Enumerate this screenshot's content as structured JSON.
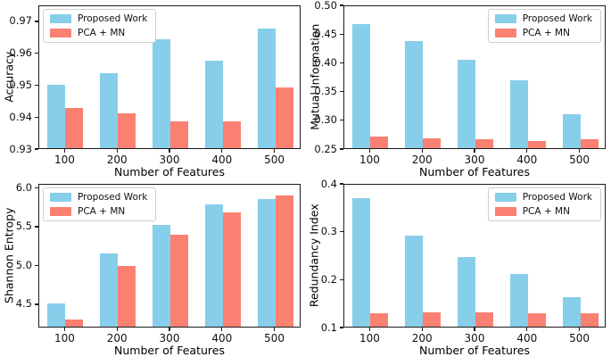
{
  "figure": {
    "background": "#ffffff",
    "spine_color": "#1c1c1c"
  },
  "colors": {
    "proposed_work": "#87ceeb",
    "pca_mn": "#fa8072"
  },
  "legend": {
    "items": [
      {
        "label": "Proposed Work",
        "color": "#87ceeb"
      },
      {
        "label": "PCA + MN",
        "color": "#fa8072"
      }
    ]
  },
  "chart_data": [
    {
      "type": "bar",
      "title": "",
      "ylabel": "Accuracy",
      "xlabel": "Number of Features",
      "categories": [
        "100",
        "200",
        "300",
        "400",
        "500"
      ],
      "ylim": [
        0.93,
        0.975
      ],
      "yticks": [
        0.93,
        0.94,
        0.95,
        0.96,
        0.97
      ],
      "ytick_labels": [
        "0.93",
        "0.94",
        "0.95",
        "0.96",
        "0.97"
      ],
      "grid": false,
      "legend_position": "upper-left",
      "series": [
        {
          "name": "Proposed Work",
          "color": "#87ceeb",
          "values": [
            0.9503,
            0.954,
            0.9647,
            0.9579,
            0.9683
          ]
        },
        {
          "name": "PCA + MN",
          "color": "#fa8072",
          "values": [
            0.9428,
            0.9412,
            0.9386,
            0.9386,
            0.9494
          ]
        }
      ]
    },
    {
      "type": "bar",
      "title": "",
      "ylabel": "Mutual Information",
      "xlabel": "Number of Features",
      "categories": [
        "100",
        "200",
        "300",
        "400",
        "500"
      ],
      "ylim": [
        0.25,
        0.5
      ],
      "yticks": [
        0.25,
        0.3,
        0.35,
        0.4,
        0.45,
        0.5
      ],
      "ytick_labels": [
        "0.25",
        "0.30",
        "0.35",
        "0.40",
        "0.45",
        "0.50"
      ],
      "grid": false,
      "legend_position": "upper-right",
      "series": [
        {
          "name": "Proposed Work",
          "color": "#87ceeb",
          "values": [
            0.47,
            0.44,
            0.406,
            0.37,
            0.31
          ]
        },
        {
          "name": "PCA + MN",
          "color": "#fa8072",
          "values": [
            0.27,
            0.268,
            0.266,
            0.263,
            0.266
          ]
        }
      ]
    },
    {
      "type": "bar",
      "title": "",
      "ylabel": "Shannon Entropy",
      "xlabel": "Number of Features",
      "categories": [
        "100",
        "200",
        "300",
        "400",
        "500"
      ],
      "ylim": [
        4.2,
        6.05
      ],
      "yticks": [
        4.5,
        5.0,
        5.5,
        6.0
      ],
      "ytick_labels": [
        "4.5",
        "5.0",
        "5.5",
        "6.0"
      ],
      "grid": false,
      "legend_position": "upper-left",
      "series": [
        {
          "name": "Proposed Work",
          "color": "#87ceeb",
          "values": [
            4.5,
            5.16,
            5.54,
            5.8,
            5.88
          ]
        },
        {
          "name": "PCA + MN",
          "color": "#fa8072",
          "values": [
            4.3,
            5.0,
            5.41,
            5.7,
            5.92
          ]
        }
      ]
    },
    {
      "type": "bar",
      "title": "",
      "ylabel": "Redundancy Index",
      "xlabel": "Number of Features",
      "categories": [
        "100",
        "200",
        "300",
        "400",
        "500"
      ],
      "ylim": [
        0.1,
        0.4
      ],
      "yticks": [
        0.1,
        0.2,
        0.3,
        0.4
      ],
      "ytick_labels": [
        "0.1",
        "0.2",
        "0.3",
        "0.4"
      ],
      "grid": false,
      "legend_position": "upper-right",
      "series": [
        {
          "name": "Proposed Work",
          "color": "#87ceeb",
          "values": [
            0.373,
            0.293,
            0.248,
            0.213,
            0.163
          ]
        },
        {
          "name": "PCA + MN",
          "color": "#fa8072",
          "values": [
            0.128,
            0.13,
            0.13,
            0.128,
            0.129
          ]
        }
      ]
    }
  ]
}
